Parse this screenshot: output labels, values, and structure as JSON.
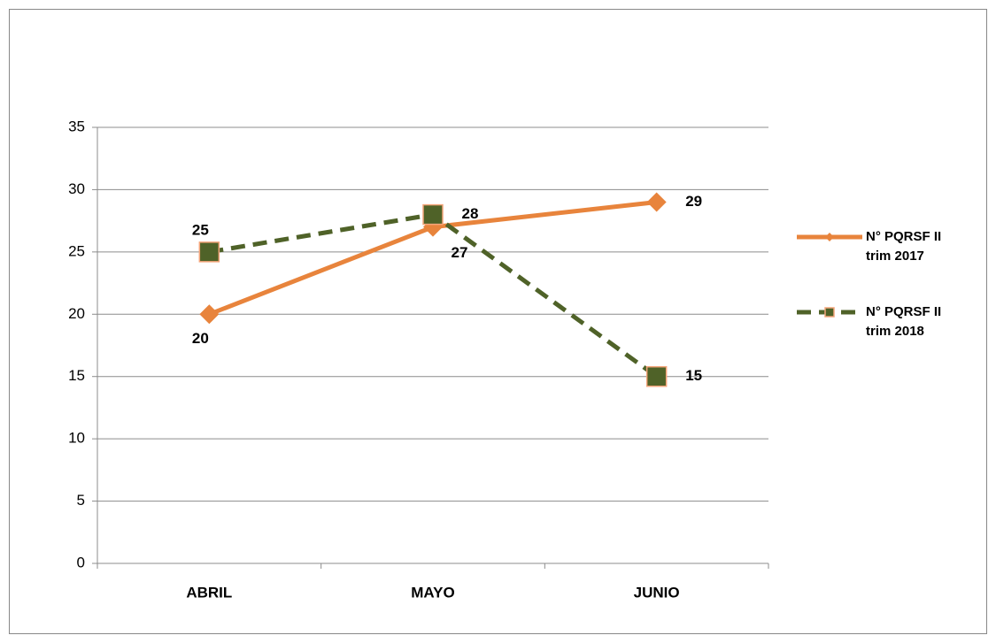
{
  "chart_data": {
    "type": "line",
    "categories": [
      "ABRIL",
      "MAYO",
      "JUNIO"
    ],
    "series": [
      {
        "name": "N° PQRSF II trim 2017",
        "color": "#e8843c",
        "values": [
          20,
          27,
          29
        ]
      },
      {
        "name": "N° PQRSF II trim 2018",
        "color": "#4f6228",
        "values": [
          25,
          28,
          15
        ]
      }
    ],
    "ylim": [
      0,
      35
    ],
    "yticks": [
      0,
      5,
      10,
      15,
      20,
      25,
      30,
      35
    ],
    "grid": true,
    "legend": "right"
  }
}
